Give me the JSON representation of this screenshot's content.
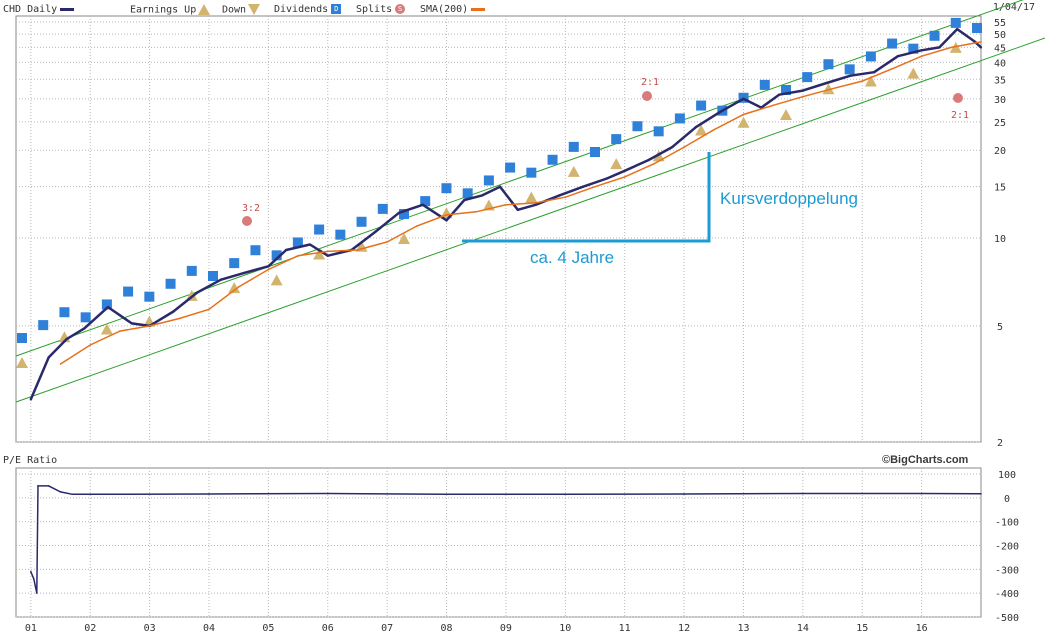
{
  "header": {
    "symbol_label": "CHD Daily",
    "earnings_label": "Earnings Up",
    "down_label": "Down",
    "dividends_label": "Dividends",
    "splits_label": "Splits",
    "sma_label": "SMA(200)",
    "date": "1/04/17",
    "copyright": "©BigCharts.com",
    "pe_title": "P/E Ratio",
    "div_glyph": "D",
    "split_glyph": "S",
    "earn_glyph": "E"
  },
  "annotations": {
    "doubling": "Kursverdoppelung",
    "four_years": "ca. 4 Jahre",
    "split_1": "3:2",
    "split_2": "2:1",
    "split_3": "2:1"
  },
  "colors": {
    "price": "#2a2a6b",
    "sma": "#e8701a",
    "trend": "#2ca02c",
    "annotation": "#1c9bd4",
    "dividend": "#2f80d8",
    "earnings": "#d2b46e",
    "split": "#d97b7b",
    "grid": "#b8b8b8"
  },
  "chart_data": [
    {
      "type": "line",
      "title": "CHD Daily",
      "x_tick_labels": [
        "01",
        "02",
        "03",
        "04",
        "05",
        "06",
        "07",
        "08",
        "09",
        "10",
        "11",
        "12",
        "13",
        "14",
        "15",
        "16"
      ],
      "y_tick_labels": [
        "55",
        "50",
        "45",
        "40",
        "35",
        "30",
        "25",
        "20",
        "15",
        "10",
        "5",
        "2"
      ],
      "y_scale": "log",
      "ylim": [
        2,
        55
      ],
      "grid": true,
      "series": [
        {
          "name": "CHD Daily",
          "x": [
            2001.0,
            2001.3,
            2001.6,
            2001.9,
            2002.3,
            2002.7,
            2003.0,
            2003.4,
            2003.8,
            2004.2,
            2004.6,
            2005.0,
            2005.3,
            2005.7,
            2006.0,
            2006.4,
            2006.8,
            2007.2,
            2007.6,
            2008.0,
            2008.3,
            2008.6,
            2008.9,
            2009.2,
            2009.5,
            2009.9,
            2010.3,
            2010.7,
            2011.0,
            2011.4,
            2011.8,
            2012.2,
            2012.6,
            2013.0,
            2013.3,
            2013.6,
            2014.0,
            2014.4,
            2014.8,
            2015.2,
            2015.6,
            2016.0,
            2016.3,
            2016.6,
            2016.9,
            2017.0
          ],
          "values": [
            2.8,
            3.9,
            4.5,
            4.9,
            5.8,
            5.1,
            5.0,
            5.6,
            6.5,
            7.2,
            7.6,
            8.0,
            9.1,
            9.5,
            8.7,
            9.1,
            10.5,
            12.2,
            13.0,
            11.5,
            13.5,
            14.0,
            15.0,
            12.5,
            13.0,
            14.0,
            15.0,
            16.0,
            17.0,
            18.5,
            20.5,
            24.0,
            27.0,
            30.0,
            28.0,
            31.0,
            32.0,
            34.0,
            36.0,
            37.0,
            42.0,
            44.0,
            45.0,
            52.0,
            47.0,
            45.0
          ]
        },
        {
          "name": "SMA(200)",
          "x": [
            2001.5,
            2002.0,
            2002.5,
            2003.0,
            2003.5,
            2004.0,
            2004.5,
            2005.0,
            2005.5,
            2006.0,
            2006.5,
            2007.0,
            2007.5,
            2008.0,
            2008.5,
            2009.0,
            2009.5,
            2010.0,
            2010.5,
            2011.0,
            2011.5,
            2012.0,
            2012.5,
            2013.0,
            2013.5,
            2014.0,
            2014.5,
            2015.0,
            2015.5,
            2016.0,
            2016.5,
            2017.0
          ],
          "values": [
            3.7,
            4.3,
            4.8,
            5.0,
            5.3,
            5.7,
            6.8,
            7.8,
            8.7,
            9.0,
            9.1,
            9.7,
            11.0,
            12.0,
            12.3,
            13.0,
            13.2,
            13.8,
            15.0,
            16.2,
            18.0,
            20.5,
            23.5,
            26.5,
            28.5,
            30.5,
            32.5,
            34.5,
            38.0,
            42.0,
            45.0,
            47.0
          ]
        }
      ]
    },
    {
      "type": "line",
      "title": "P/E Ratio",
      "y_tick_labels": [
        "100",
        "0",
        "-100",
        "-200",
        "-300",
        "-400",
        "-500"
      ],
      "ylim": [
        -500,
        100
      ],
      "grid": true,
      "series": [
        {
          "name": "P/E Ratio",
          "x": [
            2001.0,
            2001.05,
            2001.1,
            2001.12,
            2001.3,
            2001.5,
            2001.7,
            2002.0,
            2004.0,
            2006.0,
            2008.0,
            2010.0,
            2012.0,
            2014.0,
            2016.0,
            2017.0
          ],
          "values": [
            -310,
            -340,
            -400,
            50,
            50,
            25,
            15,
            15,
            16,
            18,
            15,
            15,
            16,
            18,
            18,
            17
          ]
        }
      ]
    }
  ]
}
